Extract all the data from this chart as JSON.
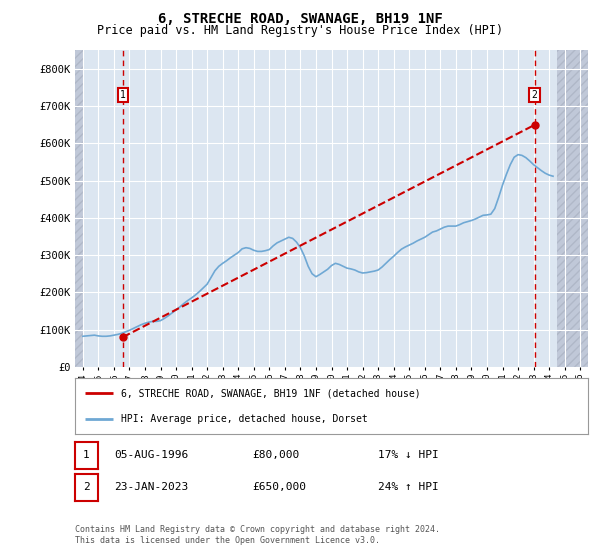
{
  "title": "6, STRECHE ROAD, SWANAGE, BH19 1NF",
  "subtitle": "Price paid vs. HM Land Registry's House Price Index (HPI)",
  "title_fontsize": 10,
  "subtitle_fontsize": 8.5,
  "background_color": "#ffffff",
  "plot_bg_color": "#dce6f1",
  "hatch_color": "#c0c8d8",
  "grid_color": "#ffffff",
  "ylim": [
    0,
    850000
  ],
  "yticks": [
    0,
    100000,
    200000,
    300000,
    400000,
    500000,
    600000,
    700000,
    800000
  ],
  "ytick_labels": [
    "£0",
    "£100K",
    "£200K",
    "£300K",
    "£400K",
    "£500K",
    "£600K",
    "£700K",
    "£800K"
  ],
  "xmin": 1993.5,
  "xmax": 2026.5,
  "hpi_color": "#6fa8d4",
  "price_color": "#cc0000",
  "marker_color": "#cc0000",
  "dashed_line_color": "#cc0000",
  "legend_border_color": "#999999",
  "annotation_box_color": "#cc0000",
  "sale1_x": 1996.59,
  "sale1_y": 80000,
  "sale1_label": "1",
  "sale1_date": "05-AUG-1996",
  "sale1_price": "£80,000",
  "sale1_hpi": "17% ↓ HPI",
  "sale2_x": 2023.07,
  "sale2_y": 650000,
  "sale2_label": "2",
  "sale2_date": "23-JAN-2023",
  "sale2_price": "£650,000",
  "sale2_hpi": "24% ↑ HPI",
  "legend1_label": "6, STRECHE ROAD, SWANAGE, BH19 1NF (detached house)",
  "legend2_label": "HPI: Average price, detached house, Dorset",
  "footer1": "Contains HM Land Registry data © Crown copyright and database right 2024.",
  "footer2": "This data is licensed under the Open Government Licence v3.0.",
  "hpi_data_x": [
    1994.0,
    1994.25,
    1994.5,
    1994.75,
    1995.0,
    1995.25,
    1995.5,
    1995.75,
    1996.0,
    1996.25,
    1996.5,
    1996.75,
    1997.0,
    1997.25,
    1997.5,
    1997.75,
    1998.0,
    1998.25,
    1998.5,
    1998.75,
    1999.0,
    1999.25,
    1999.5,
    1999.75,
    2000.0,
    2000.25,
    2000.5,
    2000.75,
    2001.0,
    2001.25,
    2001.5,
    2001.75,
    2002.0,
    2002.25,
    2002.5,
    2002.75,
    2003.0,
    2003.25,
    2003.5,
    2003.75,
    2004.0,
    2004.25,
    2004.5,
    2004.75,
    2005.0,
    2005.25,
    2005.5,
    2005.75,
    2006.0,
    2006.25,
    2006.5,
    2006.75,
    2007.0,
    2007.25,
    2007.5,
    2007.75,
    2008.0,
    2008.25,
    2008.5,
    2008.75,
    2009.0,
    2009.25,
    2009.5,
    2009.75,
    2010.0,
    2010.25,
    2010.5,
    2010.75,
    2011.0,
    2011.25,
    2011.5,
    2011.75,
    2012.0,
    2012.25,
    2012.5,
    2012.75,
    2013.0,
    2013.25,
    2013.5,
    2013.75,
    2014.0,
    2014.25,
    2014.5,
    2014.75,
    2015.0,
    2015.25,
    2015.5,
    2015.75,
    2016.0,
    2016.25,
    2016.5,
    2016.75,
    2017.0,
    2017.25,
    2017.5,
    2017.75,
    2018.0,
    2018.25,
    2018.5,
    2018.75,
    2019.0,
    2019.25,
    2019.5,
    2019.75,
    2020.0,
    2020.25,
    2020.5,
    2020.75,
    2021.0,
    2021.25,
    2021.5,
    2021.75,
    2022.0,
    2022.25,
    2022.5,
    2022.75,
    2023.0,
    2023.25,
    2023.5,
    2023.75,
    2024.0,
    2024.25
  ],
  "hpi_data_y": [
    82000,
    83000,
    84000,
    85000,
    83000,
    82000,
    82000,
    83000,
    85000,
    87000,
    90000,
    94000,
    98000,
    103000,
    108000,
    113000,
    117000,
    120000,
    122000,
    122000,
    124000,
    130000,
    137000,
    145000,
    153000,
    161000,
    170000,
    178000,
    185000,
    193000,
    202000,
    212000,
    222000,
    240000,
    258000,
    270000,
    278000,
    285000,
    293000,
    300000,
    307000,
    317000,
    320000,
    318000,
    313000,
    310000,
    310000,
    312000,
    315000,
    325000,
    333000,
    338000,
    343000,
    348000,
    345000,
    335000,
    320000,
    298000,
    270000,
    250000,
    242000,
    248000,
    255000,
    262000,
    272000,
    278000,
    275000,
    270000,
    265000,
    263000,
    260000,
    255000,
    252000,
    253000,
    255000,
    257000,
    260000,
    268000,
    278000,
    288000,
    297000,
    307000,
    316000,
    322000,
    327000,
    332000,
    338000,
    343000,
    348000,
    355000,
    362000,
    365000,
    370000,
    375000,
    378000,
    378000,
    378000,
    382000,
    387000,
    390000,
    393000,
    397000,
    402000,
    407000,
    408000,
    410000,
    425000,
    455000,
    488000,
    517000,
    543000,
    563000,
    570000,
    568000,
    562000,
    553000,
    543000,
    535000,
    527000,
    520000,
    515000,
    512000
  ],
  "price_data_x": [
    1996.59,
    2023.07
  ],
  "price_data_y": [
    80000,
    650000
  ],
  "xtick_years": [
    1994,
    1995,
    1996,
    1997,
    1998,
    1999,
    2000,
    2001,
    2002,
    2003,
    2004,
    2005,
    2006,
    2007,
    2008,
    2009,
    2010,
    2011,
    2012,
    2013,
    2014,
    2015,
    2016,
    2017,
    2018,
    2019,
    2020,
    2021,
    2022,
    2023,
    2024,
    2025,
    2026
  ]
}
